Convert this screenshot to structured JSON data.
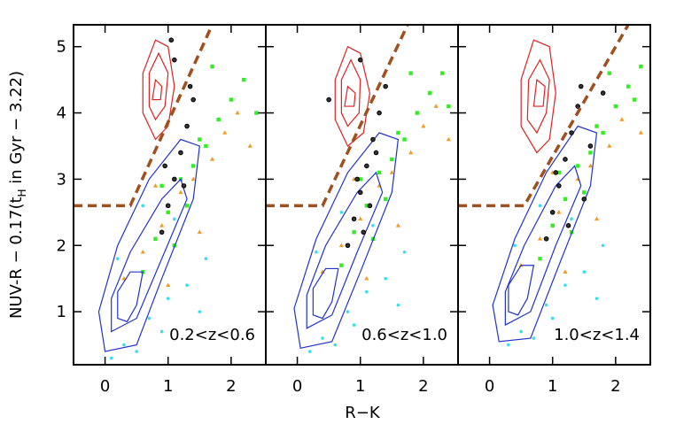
{
  "axis_labels": {
    "x": "R−K",
    "y_main": "NUV-R − 0.17(t",
    "y_sub": "H",
    "y_rest": " in Gyr − 3.22)"
  },
  "chart_data": [
    {
      "type": "scatter",
      "annotation": "0.2<z<0.6",
      "xlim": [
        -0.5,
        2.55
      ],
      "ylim": [
        0.2,
        5.33
      ],
      "xticks": [
        0,
        1,
        2
      ],
      "yticks": [
        1,
        2,
        3,
        4,
        5
      ],
      "ytick_labels": true,
      "series": [
        {
          "kind": "points",
          "marker": "dot",
          "color": "#33e0f0",
          "x": [
            0.1,
            0.3,
            0.5,
            0.7,
            1.0,
            1.3,
            1.6,
            0.9,
            0.2,
            1.1,
            0.6,
            1.5
          ],
          "y": [
            0.3,
            0.5,
            0.4,
            0.9,
            1.2,
            1.4,
            1.8,
            0.7,
            1.8,
            2.4,
            2.6,
            1.0
          ]
        },
        {
          "kind": "points",
          "marker": "triangle",
          "color": "#f59a23",
          "x": [
            0.3,
            0.6,
            0.9,
            1.2,
            1.4,
            1.7,
            1.9,
            2.1,
            1.0,
            0.8,
            1.5,
            2.3
          ],
          "y": [
            1.5,
            1.9,
            2.3,
            2.8,
            3.0,
            3.3,
            3.7,
            4.0,
            1.4,
            2.9,
            2.2,
            3.5
          ]
        },
        {
          "kind": "points",
          "marker": "square",
          "color": "#33ee22",
          "x": [
            0.6,
            0.8,
            1.0,
            1.2,
            1.4,
            1.6,
            1.8,
            2.0,
            2.2,
            1.1,
            1.3,
            1.5,
            1.7,
            0.9,
            2.4
          ],
          "y": [
            1.6,
            2.1,
            2.5,
            3.0,
            3.2,
            3.5,
            3.9,
            4.2,
            4.5,
            2.0,
            2.6,
            3.6,
            4.7,
            2.9,
            4.0
          ]
        },
        {
          "kind": "contour",
          "color": "#2233cc",
          "x": [
            0.0,
            -0.1,
            0.2,
            0.7,
            1.2,
            1.5,
            1.4,
            0.9,
            0.5
          ],
          "y": [
            0.4,
            1.0,
            2.0,
            3.0,
            3.6,
            3.5,
            2.7,
            1.5,
            0.5
          ]
        },
        {
          "kind": "contour",
          "color": "#2233cc",
          "x": [
            0.1,
            0.1,
            0.4,
            0.9,
            1.2,
            1.3,
            0.9,
            0.5
          ],
          "y": [
            0.7,
            1.2,
            1.9,
            2.7,
            3.0,
            2.7,
            1.8,
            0.9
          ]
        },
        {
          "kind": "contour",
          "color": "#2233cc",
          "x": [
            0.2,
            0.2,
            0.4,
            0.6,
            0.5,
            0.35
          ],
          "y": [
            0.9,
            1.3,
            1.6,
            1.6,
            1.1,
            0.85
          ]
        },
        {
          "kind": "contour",
          "color": "#dd2222",
          "x": [
            0.6,
            0.6,
            0.8,
            1.0,
            1.1,
            1.0,
            0.8
          ],
          "y": [
            4.0,
            4.6,
            5.1,
            5.0,
            4.4,
            3.8,
            3.6
          ]
        },
        {
          "kind": "contour",
          "color": "#dd2222",
          "x": [
            0.7,
            0.7,
            0.85,
            1.0,
            0.95,
            0.8
          ],
          "y": [
            4.1,
            4.6,
            4.9,
            4.6,
            4.1,
            3.9
          ]
        },
        {
          "kind": "contour",
          "color": "#dd2222",
          "x": [
            0.75,
            0.8,
            0.9,
            0.88
          ],
          "y": [
            4.2,
            4.5,
            4.4,
            4.2
          ]
        },
        {
          "kind": "points",
          "marker": "ring",
          "color": "#000000",
          "x": [
            0.9,
            1.0,
            1.1,
            1.2,
            1.3,
            1.4,
            1.1,
            0.95,
            1.25,
            1.35,
            1.05
          ],
          "y": [
            2.2,
            2.6,
            3.0,
            3.4,
            3.8,
            4.2,
            4.8,
            3.2,
            2.9,
            4.4,
            5.1
          ]
        },
        {
          "kind": "line",
          "style": "dashed",
          "color": "#a0501e",
          "x": [
            -0.5,
            0.4,
            1.7
          ],
          "y": [
            2.6,
            2.6,
            5.33
          ]
        }
      ]
    },
    {
      "type": "scatter",
      "annotation": "0.6<z<1.0",
      "xlim": [
        -0.5,
        2.55
      ],
      "ylim": [
        0.2,
        5.33
      ],
      "xticks": [
        0,
        1,
        2
      ],
      "yticks": [
        1,
        2,
        3,
        4,
        5
      ],
      "ytick_labels": false,
      "series": [
        {
          "kind": "points",
          "marker": "dot",
          "color": "#33e0f0",
          "x": [
            0.2,
            0.4,
            0.6,
            0.8,
            1.1,
            1.4,
            1.7,
            0.9,
            0.3,
            1.2,
            0.7,
            1.6
          ],
          "y": [
            0.4,
            0.6,
            0.5,
            1.0,
            1.3,
            1.5,
            1.9,
            0.8,
            1.9,
            2.3,
            2.5,
            1.1
          ]
        },
        {
          "kind": "points",
          "marker": "triangle",
          "color": "#f59a23",
          "x": [
            0.4,
            0.7,
            1.0,
            1.3,
            1.5,
            1.8,
            2.0,
            2.2,
            1.1,
            0.9,
            1.6,
            2.4
          ],
          "y": [
            1.6,
            2.0,
            2.4,
            2.9,
            3.1,
            3.4,
            3.8,
            4.1,
            1.5,
            3.0,
            2.3,
            3.6
          ]
        },
        {
          "kind": "points",
          "marker": "square",
          "color": "#33ee22",
          "x": [
            0.7,
            0.9,
            1.1,
            1.3,
            1.5,
            1.7,
            1.9,
            2.1,
            2.3,
            1.2,
            1.4,
            1.6,
            1.8,
            1.0,
            2.4
          ],
          "y": [
            1.7,
            2.2,
            2.6,
            3.1,
            3.3,
            3.6,
            4.0,
            4.3,
            4.6,
            2.1,
            2.7,
            3.7,
            4.6,
            3.0,
            4.1
          ]
        },
        {
          "kind": "contour",
          "color": "#2233cc",
          "x": [
            0.05,
            -0.05,
            0.3,
            0.8,
            1.3,
            1.6,
            1.5,
            1.0,
            0.55
          ],
          "y": [
            0.45,
            1.05,
            2.1,
            3.1,
            3.7,
            3.6,
            2.8,
            1.6,
            0.55
          ]
        },
        {
          "kind": "contour",
          "color": "#2233cc",
          "x": [
            0.15,
            0.15,
            0.45,
            0.95,
            1.25,
            1.35,
            0.95,
            0.55
          ],
          "y": [
            0.75,
            1.25,
            2.0,
            2.8,
            3.1,
            2.8,
            1.9,
            0.95
          ]
        },
        {
          "kind": "contour",
          "color": "#2233cc",
          "x": [
            0.25,
            0.25,
            0.45,
            0.65,
            0.55,
            0.4
          ],
          "y": [
            0.95,
            1.35,
            1.65,
            1.65,
            1.15,
            0.9
          ]
        },
        {
          "kind": "contour",
          "color": "#dd2222",
          "x": [
            0.6,
            0.6,
            0.8,
            1.0,
            1.15,
            1.05,
            0.8
          ],
          "y": [
            3.9,
            4.5,
            5.0,
            4.9,
            4.3,
            3.7,
            3.5
          ]
        },
        {
          "kind": "contour",
          "color": "#dd2222",
          "x": [
            0.7,
            0.7,
            0.85,
            1.0,
            0.98,
            0.8
          ],
          "y": [
            4.0,
            4.5,
            4.8,
            4.5,
            4.0,
            3.8
          ]
        },
        {
          "kind": "contour",
          "color": "#dd2222",
          "x": [
            0.75,
            0.8,
            0.92,
            0.9
          ],
          "y": [
            4.1,
            4.4,
            4.3,
            4.1
          ]
        },
        {
          "kind": "points",
          "marker": "ring",
          "color": "#000000",
          "x": [
            0.8,
            0.9,
            1.0,
            1.1,
            1.2,
            1.3,
            1.4,
            1.0,
            0.95,
            1.15,
            1.25,
            0.5,
            1.05
          ],
          "y": [
            2.0,
            2.4,
            2.8,
            3.2,
            3.6,
            4.0,
            4.4,
            4.8,
            3.0,
            2.6,
            3.4,
            4.2,
            2.2
          ]
        },
        {
          "kind": "line",
          "style": "dashed",
          "color": "#a0501e",
          "x": [
            -0.5,
            0.4,
            1.75
          ],
          "y": [
            2.6,
            2.6,
            5.33
          ]
        }
      ]
    },
    {
      "type": "scatter",
      "annotation": "1.0<z<1.4",
      "xlim": [
        -0.5,
        2.55
      ],
      "ylim": [
        0.2,
        5.33
      ],
      "xticks": [
        0,
        1,
        2
      ],
      "yticks": [
        1,
        2,
        3,
        4,
        5
      ],
      "ytick_labels": false,
      "series": [
        {
          "kind": "points",
          "marker": "dot",
          "color": "#33e0f0",
          "x": [
            0.3,
            0.5,
            0.7,
            0.9,
            1.2,
            1.5,
            1.8,
            1.0,
            0.4,
            1.3,
            0.8,
            1.7
          ],
          "y": [
            0.5,
            0.7,
            0.6,
            1.1,
            1.4,
            1.6,
            2.0,
            0.9,
            2.0,
            2.4,
            2.6,
            1.2
          ]
        },
        {
          "kind": "points",
          "marker": "triangle",
          "color": "#f59a23",
          "x": [
            0.5,
            0.8,
            1.1,
            1.4,
            1.6,
            1.9,
            2.1,
            2.3,
            1.2,
            1.0,
            1.7,
            2.4
          ],
          "y": [
            1.7,
            2.1,
            2.5,
            3.0,
            3.2,
            3.5,
            3.9,
            4.2,
            1.6,
            3.1,
            2.4,
            3.7
          ]
        },
        {
          "kind": "points",
          "marker": "square",
          "color": "#33ee22",
          "x": [
            0.8,
            1.0,
            1.2,
            1.4,
            1.6,
            1.8,
            2.0,
            2.2,
            2.4,
            1.3,
            1.5,
            1.7,
            1.9,
            1.1,
            2.3
          ],
          "y": [
            1.8,
            2.3,
            2.7,
            3.2,
            3.4,
            3.7,
            4.1,
            4.4,
            4.7,
            2.2,
            2.8,
            3.8,
            4.6,
            3.1,
            4.2
          ]
        },
        {
          "kind": "contour",
          "color": "#2233cc",
          "x": [
            0.15,
            0.05,
            0.4,
            0.9,
            1.4,
            1.7,
            1.6,
            1.1,
            0.65
          ],
          "y": [
            0.55,
            1.1,
            2.1,
            3.1,
            3.8,
            3.7,
            2.9,
            1.7,
            0.6
          ]
        },
        {
          "kind": "contour",
          "color": "#2233cc",
          "x": [
            0.25,
            0.25,
            0.55,
            1.05,
            1.35,
            1.45,
            1.05,
            0.65
          ],
          "y": [
            0.8,
            1.3,
            2.0,
            2.9,
            3.2,
            2.9,
            2.0,
            1.0
          ]
        },
        {
          "kind": "contour",
          "color": "#2233cc",
          "x": [
            0.3,
            0.3,
            0.5,
            0.7,
            0.6,
            0.45
          ],
          "y": [
            1.0,
            1.4,
            1.7,
            1.7,
            1.2,
            0.95
          ]
        },
        {
          "kind": "contour",
          "color": "#dd2222",
          "x": [
            0.5,
            0.5,
            0.7,
            0.95,
            1.05,
            0.95,
            0.75
          ],
          "y": [
            3.8,
            4.5,
            5.1,
            5.0,
            4.3,
            3.6,
            3.4
          ]
        },
        {
          "kind": "contour",
          "color": "#dd2222",
          "x": [
            0.6,
            0.62,
            0.8,
            0.95,
            0.9,
            0.75
          ],
          "y": [
            3.9,
            4.5,
            4.8,
            4.5,
            4.0,
            3.7
          ]
        },
        {
          "kind": "contour",
          "color": "#dd2222",
          "x": [
            0.7,
            0.75,
            0.88,
            0.85
          ],
          "y": [
            4.1,
            4.5,
            4.4,
            4.1
          ]
        },
        {
          "kind": "points",
          "marker": "ring",
          "color": "#000000",
          "x": [
            0.9,
            1.0,
            1.1,
            1.2,
            1.3,
            1.4,
            1.5,
            1.6,
            1.05,
            1.25,
            1.45,
            1.8
          ],
          "y": [
            2.1,
            2.5,
            2.9,
            3.3,
            3.7,
            4.1,
            2.7,
            3.5,
            3.1,
            2.3,
            4.4,
            4.3
          ]
        },
        {
          "kind": "line",
          "style": "dashed",
          "color": "#a0501e",
          "x": [
            -0.5,
            0.55,
            2.2
          ],
          "y": [
            2.6,
            2.6,
            5.33
          ]
        }
      ]
    }
  ]
}
